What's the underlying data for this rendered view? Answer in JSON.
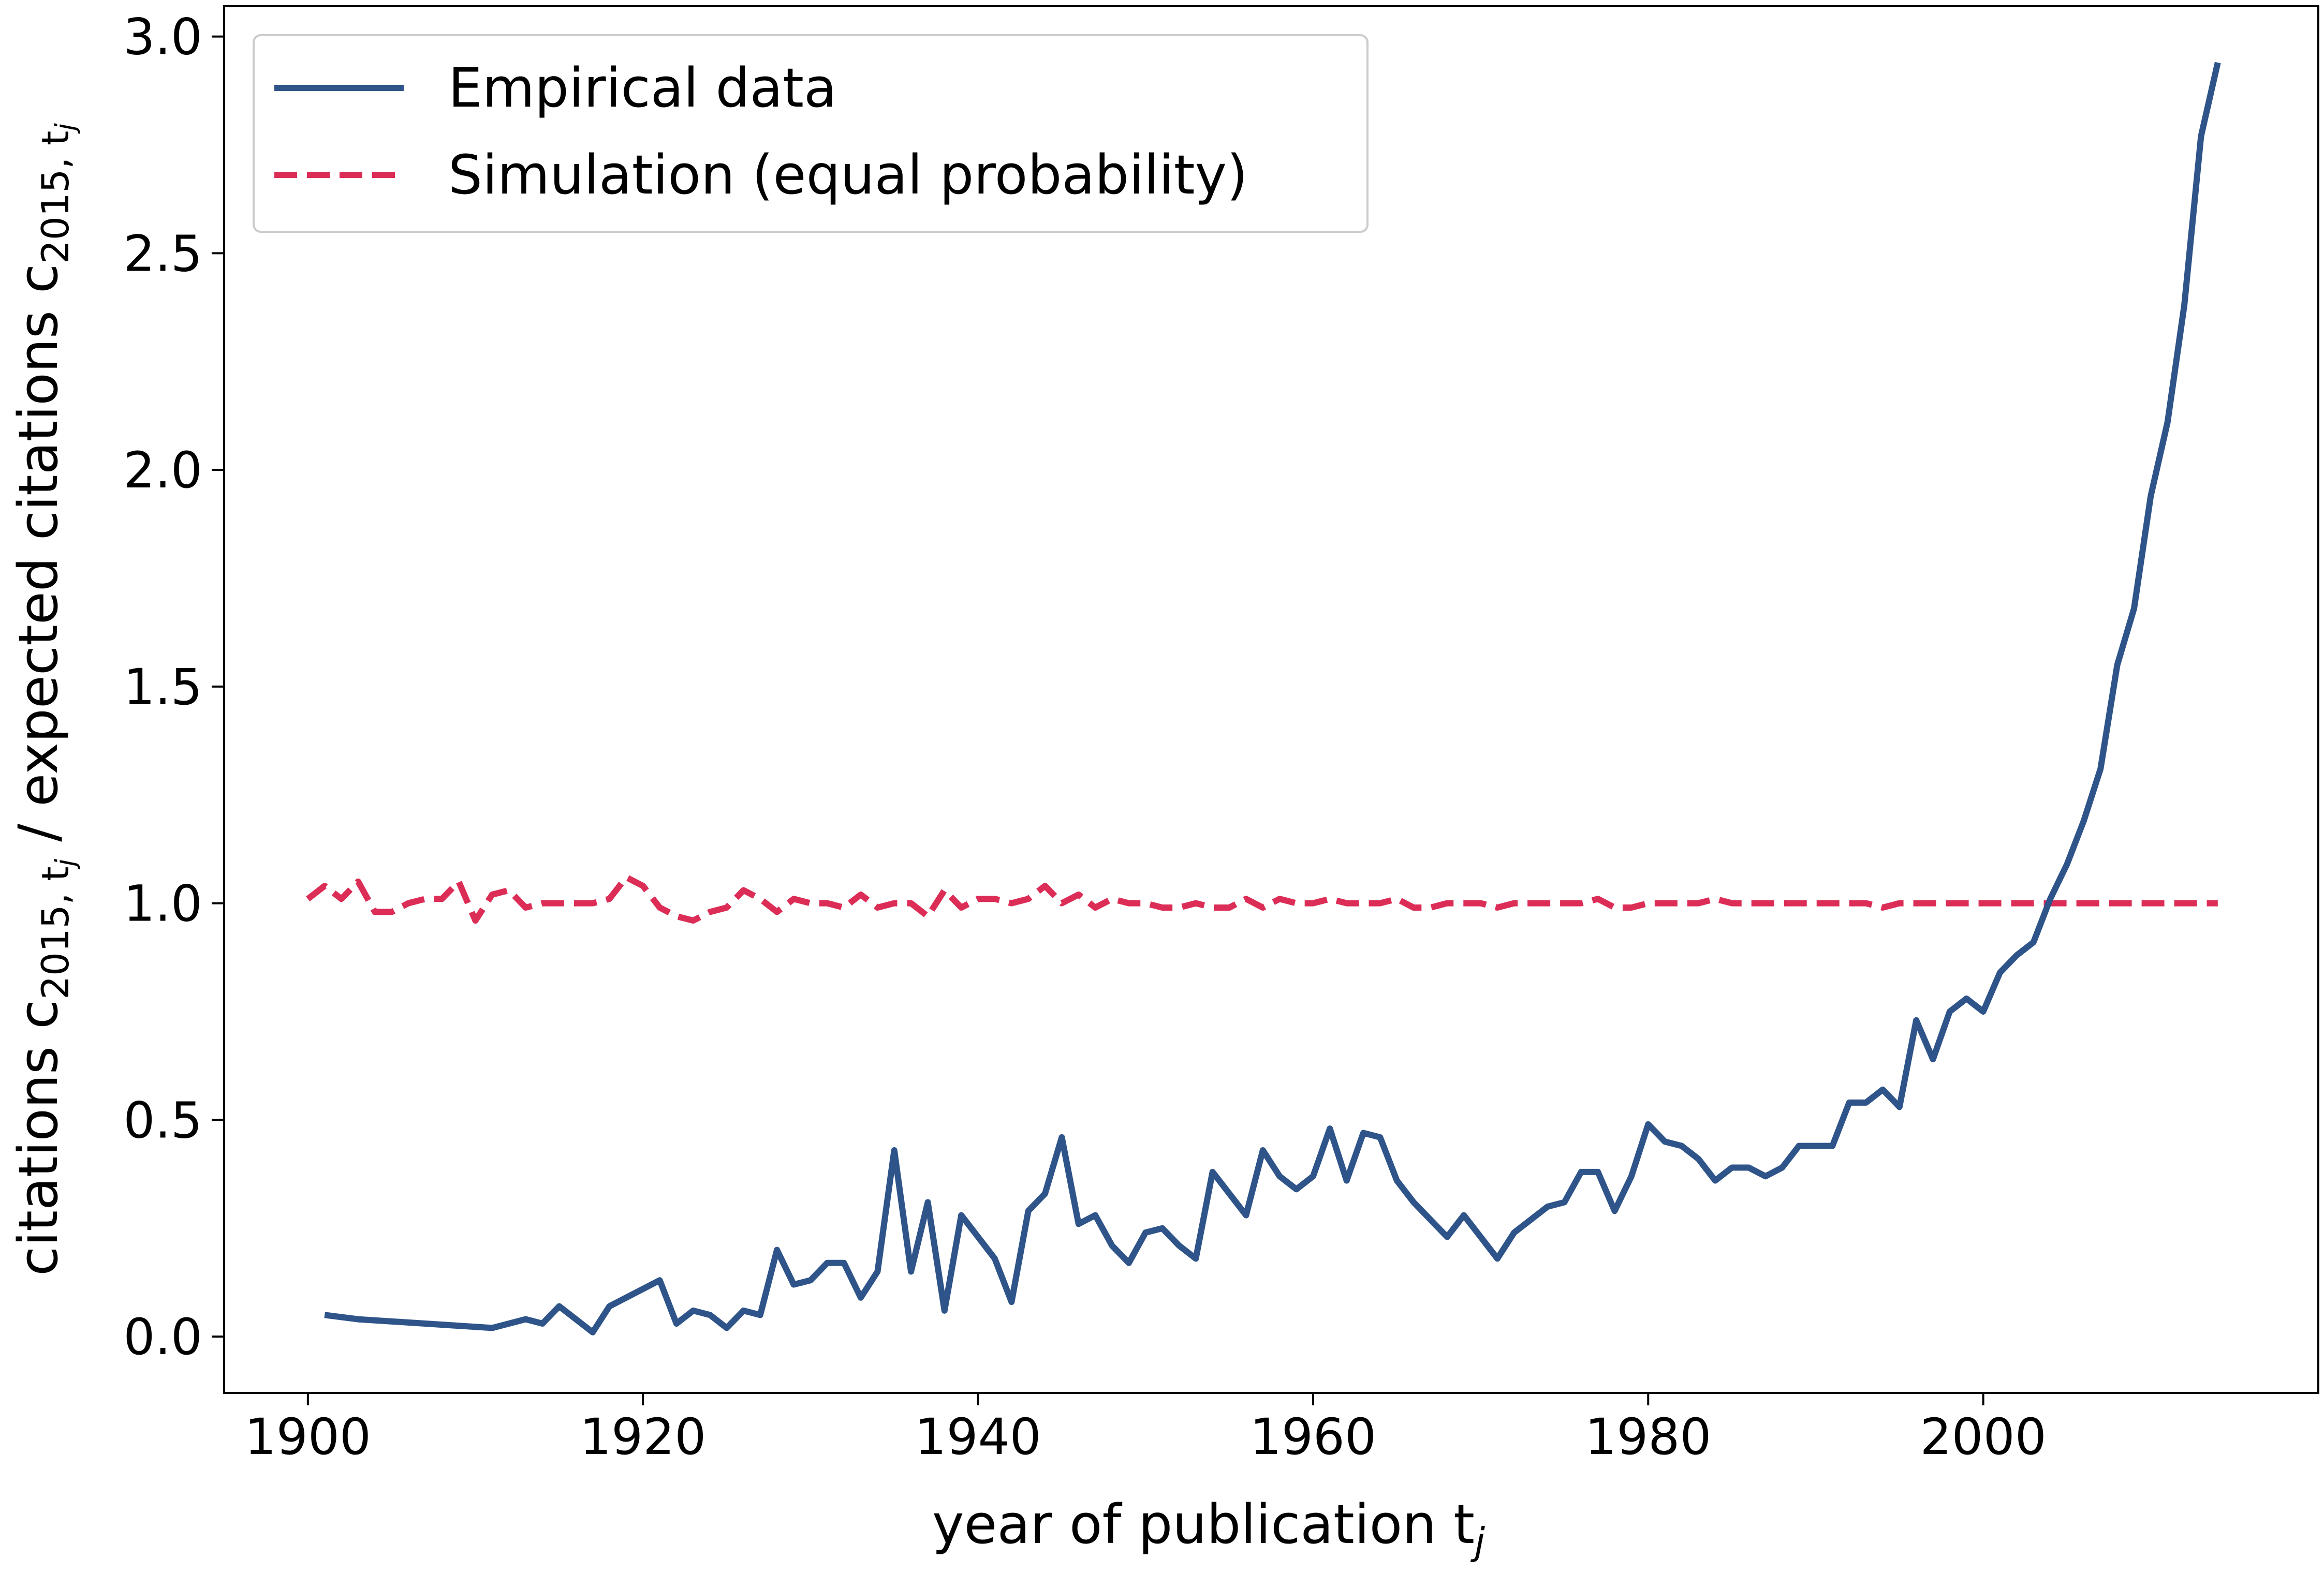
{
  "chart_data": {
    "type": "line",
    "xlabel": "year of publication t",
    "xlabel_sub": "j",
    "ylabel": {
      "p1": "citations c",
      "p1_sub": "2015, t",
      "p1_subsub": "j",
      "p2": " / expected citations c",
      "p2_sub": "2015, t",
      "p2_subsub": "j"
    },
    "xlim": [
      1895,
      2020
    ],
    "ylim": [
      -0.13,
      3.07
    ],
    "x_ticks": [
      1900,
      1920,
      1940,
      1960,
      1980,
      2000
    ],
    "x_tick_labels": [
      "1900",
      "1920",
      "1940",
      "1960",
      "1980",
      "2000"
    ],
    "y_ticks": [
      0.0,
      0.5,
      1.0,
      1.5,
      2.0,
      2.5,
      3.0
    ],
    "y_tick_labels": [
      "0.0",
      "0.5",
      "1.0",
      "1.5",
      "2.0",
      "2.5",
      "3.0"
    ],
    "grid": false,
    "legend_position": "top-left",
    "series": [
      {
        "name": "Empirical data",
        "style": "solid",
        "color": "#2e5489",
        "x": [
          1901,
          1903,
          1911,
          1913,
          1914,
          1915,
          1917,
          1918,
          1921,
          1922,
          1923,
          1924,
          1925,
          1926,
          1927,
          1928,
          1929,
          1930,
          1931,
          1932,
          1933,
          1934,
          1935,
          1936,
          1937,
          1938,
          1939,
          1940,
          1941,
          1942,
          1943,
          1944,
          1945,
          1946,
          1947,
          1948,
          1949,
          1950,
          1951,
          1952,
          1953,
          1954,
          1955,
          1956,
          1957,
          1958,
          1959,
          1960,
          1961,
          1962,
          1963,
          1964,
          1965,
          1966,
          1967,
          1968,
          1969,
          1970,
          1971,
          1972,
          1973,
          1974,
          1975,
          1976,
          1977,
          1978,
          1979,
          1980,
          1981,
          1982,
          1983,
          1984,
          1985,
          1986,
          1987,
          1988,
          1989,
          1990,
          1991,
          1992,
          1993,
          1994,
          1995,
          1996,
          1997,
          1998,
          1999,
          2000,
          2001,
          2002,
          2003,
          2004,
          2005,
          2006,
          2007,
          2008,
          2009,
          2010,
          2011,
          2012,
          2013,
          2014
        ],
        "y": [
          0.05,
          0.04,
          0.02,
          0.04,
          0.03,
          0.07,
          0.01,
          0.07,
          0.13,
          0.03,
          0.06,
          0.05,
          0.02,
          0.06,
          0.05,
          0.2,
          0.12,
          0.13,
          0.17,
          0.17,
          0.09,
          0.15,
          0.43,
          0.15,
          0.31,
          0.06,
          0.28,
          0.23,
          0.18,
          0.08,
          0.29,
          0.33,
          0.46,
          0.26,
          0.28,
          0.21,
          0.17,
          0.24,
          0.25,
          0.21,
          0.18,
          0.38,
          0.33,
          0.28,
          0.43,
          0.37,
          0.34,
          0.37,
          0.48,
          0.36,
          0.47,
          0.46,
          0.36,
          0.31,
          0.27,
          0.23,
          0.28,
          0.23,
          0.18,
          0.24,
          0.27,
          0.3,
          0.31,
          0.38,
          0.38,
          0.29,
          0.37,
          0.49,
          0.45,
          0.44,
          0.41,
          0.36,
          0.39,
          0.39,
          0.37,
          0.39,
          0.44,
          0.44,
          0.44,
          0.54,
          0.54,
          0.57,
          0.53,
          0.73,
          0.64,
          0.75,
          0.78,
          0.75,
          0.84,
          0.88,
          0.91,
          1.01,
          1.09,
          1.19,
          1.31,
          1.55,
          1.68,
          1.94,
          2.11,
          2.38,
          2.77,
          2.94
        ]
      },
      {
        "name": "Simulation (equal probability)",
        "style": "dashed",
        "color": "#dc2d57",
        "x": [
          1900,
          1901,
          1902,
          1903,
          1904,
          1905,
          1906,
          1907,
          1908,
          1909,
          1910,
          1911,
          1912,
          1913,
          1914,
          1915,
          1916,
          1917,
          1918,
          1919,
          1920,
          1921,
          1922,
          1923,
          1924,
          1925,
          1926,
          1927,
          1928,
          1929,
          1930,
          1931,
          1932,
          1933,
          1934,
          1935,
          1936,
          1937,
          1938,
          1939,
          1940,
          1941,
          1942,
          1943,
          1944,
          1945,
          1946,
          1947,
          1948,
          1949,
          1950,
          1951,
          1952,
          1953,
          1954,
          1955,
          1956,
          1957,
          1958,
          1959,
          1960,
          1961,
          1962,
          1963,
          1964,
          1965,
          1966,
          1967,
          1968,
          1969,
          1970,
          1971,
          1972,
          1973,
          1974,
          1975,
          1976,
          1977,
          1978,
          1979,
          1980,
          1981,
          1982,
          1983,
          1984,
          1985,
          1986,
          1987,
          1988,
          1989,
          1990,
          1991,
          1992,
          1993,
          1994,
          1995,
          1996,
          1997,
          1998,
          1999,
          2000,
          2001,
          2002,
          2003,
          2004,
          2005,
          2006,
          2007,
          2008,
          2009,
          2010,
          2011,
          2012,
          2013,
          2014
        ],
        "y": [
          1.01,
          1.04,
          1.01,
          1.05,
          0.98,
          0.98,
          1.0,
          1.01,
          1.01,
          1.05,
          0.96,
          1.02,
          1.03,
          0.99,
          1.0,
          1.0,
          1.0,
          1.0,
          1.01,
          1.06,
          1.04,
          0.99,
          0.97,
          0.96,
          0.98,
          0.99,
          1.03,
          1.01,
          0.98,
          1.01,
          1.0,
          1.0,
          0.99,
          1.02,
          0.99,
          1.0,
          1.0,
          0.97,
          1.03,
          0.99,
          1.01,
          1.01,
          1.0,
          1.01,
          1.04,
          1.0,
          1.02,
          0.99,
          1.01,
          1.0,
          1.0,
          0.99,
          0.99,
          1.0,
          0.99,
          0.99,
          1.01,
          0.99,
          1.01,
          1.0,
          1.0,
          1.01,
          1.0,
          1.0,
          1.0,
          1.01,
          0.99,
          0.99,
          1.0,
          1.0,
          1.0,
          0.99,
          1.0,
          1.0,
          1.0,
          1.0,
          1.0,
          1.01,
          0.99,
          0.99,
          1.0,
          1.0,
          1.0,
          1.0,
          1.01,
          1.0,
          1.0,
          1.0,
          1.0,
          1.0,
          1.0,
          1.0,
          1.0,
          1.0,
          0.99,
          1.0,
          1.0,
          1.0,
          1.0,
          1.0,
          1.0,
          1.0,
          1.0,
          1.0,
          1.0,
          1.0,
          1.0,
          1.0,
          1.0,
          1.0,
          1.0,
          1.0,
          1.0,
          1.0,
          1.0
        ]
      }
    ]
  }
}
